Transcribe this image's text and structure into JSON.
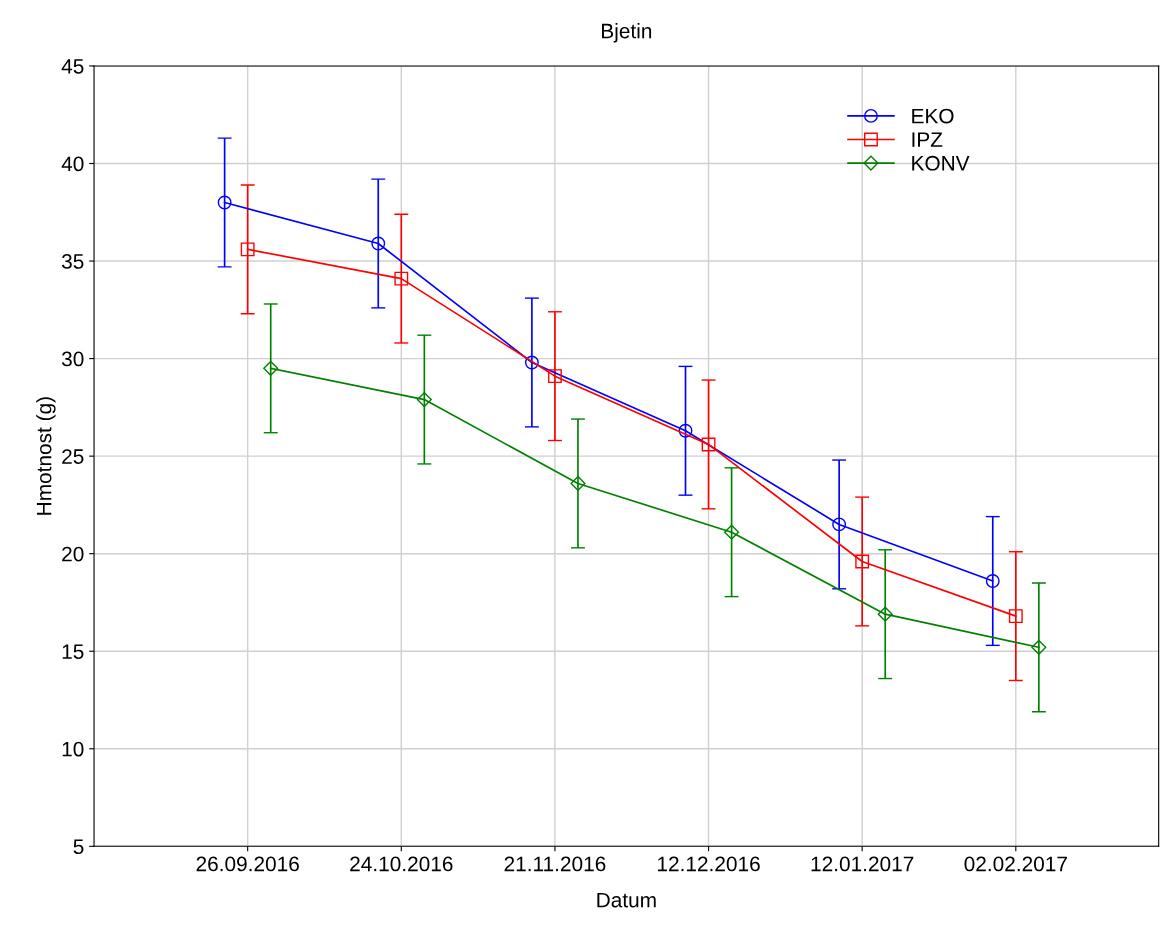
{
  "chart_data": {
    "type": "line",
    "title": "Bjetin",
    "xlabel": "Datum",
    "ylabel": "Hmotnost (g)",
    "categories": [
      "26.09.2016",
      "24.10.2016",
      "21.11.2016",
      "12.12.2016",
      "12.01.2017",
      "02.02.2017"
    ],
    "series": [
      {
        "name": "EKO",
        "color": "#0000ff",
        "marker": "circle",
        "values": [
          38.0,
          35.9,
          29.8,
          26.3,
          21.5,
          18.6
        ],
        "errors": [
          3.3,
          3.3,
          3.3,
          3.3,
          3.3,
          3.3
        ]
      },
      {
        "name": "IPZ",
        "color": "#ff0000",
        "marker": "square",
        "values": [
          35.6,
          34.1,
          29.1,
          25.6,
          19.6,
          16.8
        ],
        "errors": [
          3.3,
          3.3,
          3.3,
          3.3,
          3.3,
          3.3
        ]
      },
      {
        "name": "KONV",
        "color": "#008000",
        "marker": "diamond",
        "values": [
          29.5,
          27.9,
          23.6,
          21.1,
          16.9,
          15.2
        ],
        "errors": [
          3.3,
          3.3,
          3.3,
          3.3,
          3.3,
          3.3
        ]
      }
    ],
    "ylim": [
      5,
      45
    ],
    "yticks": [
      5,
      10,
      15,
      20,
      25,
      30,
      35,
      40,
      45
    ],
    "grid": true,
    "legend": "top right"
  }
}
